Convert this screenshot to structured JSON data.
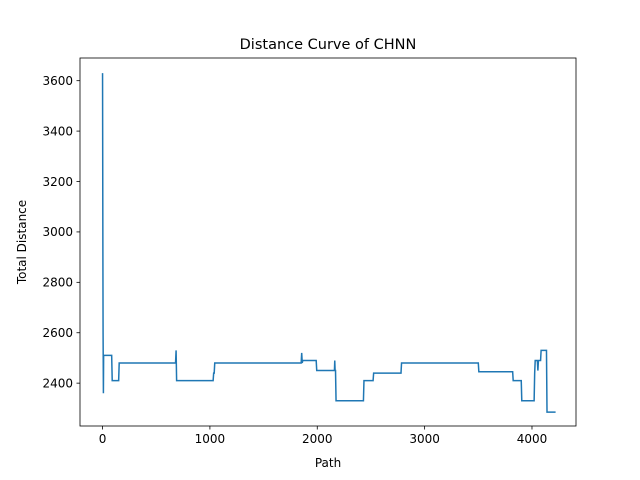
{
  "chart_data": {
    "type": "line",
    "title": "Distance Curve of CHNN",
    "xlabel": "Path",
    "ylabel": "Total Distance",
    "xlim": [
      -210,
      4410
    ],
    "ylim": [
      2230,
      3690
    ],
    "xticks": [
      0,
      1000,
      2000,
      3000,
      4000
    ],
    "yticks": [
      2400,
      2600,
      2800,
      3000,
      3200,
      3400,
      3600
    ],
    "grid": false,
    "line_color": "#1f77b4",
    "series": [
      {
        "x": [
          0,
          0,
          3,
          5,
          8,
          10,
          15,
          20,
          25,
          30,
          85,
          90,
          95,
          150,
          155,
          160,
          680,
          685,
          690,
          700,
          1030,
          1035,
          1040,
          1045,
          1050,
          1850,
          1855,
          1860,
          1865,
          1870,
          1990,
          1995,
          2000,
          2160,
          2163,
          2166,
          2170,
          2175,
          2430,
          2435,
          2440,
          2520,
          2525,
          2530,
          2780,
          2785,
          2790,
          3500,
          3505,
          3510,
          3820,
          3825,
          3830,
          3900,
          3905,
          3910,
          4020,
          4025,
          4030,
          4050,
          4055,
          4060,
          4080,
          4085,
          4090,
          4130,
          4135,
          4140,
          4170,
          4175,
          4180,
          4220
        ],
        "y": [
          3630,
          3630,
          2950,
          2600,
          2360,
          2510,
          2510,
          2510,
          2510,
          2510,
          2510,
          2410,
          2410,
          2410,
          2480,
          2480,
          2480,
          2530,
          2410,
          2410,
          2410,
          2440,
          2440,
          2480,
          2480,
          2480,
          2520,
          2480,
          2490,
          2490,
          2490,
          2450,
          2450,
          2450,
          2490,
          2450,
          2450,
          2330,
          2330,
          2410,
          2410,
          2410,
          2440,
          2440,
          2440,
          2480,
          2480,
          2480,
          2445,
          2445,
          2445,
          2410,
          2410,
          2410,
          2330,
          2330,
          2330,
          2440,
          2490,
          2490,
          2450,
          2490,
          2490,
          2530,
          2530,
          2530,
          2530,
          2285,
          2285,
          2285,
          2285,
          2285
        ]
      }
    ]
  }
}
